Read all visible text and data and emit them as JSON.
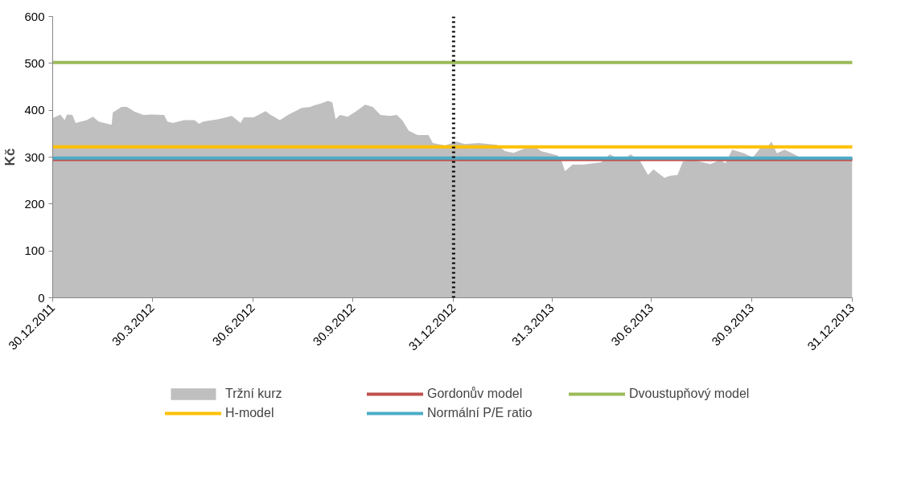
{
  "chart_data": {
    "type": "line",
    "ylabel": "Kč",
    "xlim": [
      "2011-12-30",
      "2013-12-31"
    ],
    "xticks": [
      {
        "value": "2011-12-30",
        "label": "30.12.2011"
      },
      {
        "value": "2012-03-30",
        "label": "30.3.2012"
      },
      {
        "value": "2012-06-30",
        "label": "30.6.2012"
      },
      {
        "value": "2012-09-30",
        "label": "30.9.2012"
      },
      {
        "value": "2012-12-31",
        "label": "31.12.2012"
      },
      {
        "value": "2013-03-31",
        "label": "31.3.2013"
      },
      {
        "value": "2013-06-30",
        "label": "30.6.2013"
      },
      {
        "value": "2013-09-30",
        "label": "30.9.2013"
      },
      {
        "value": "2013-12-31",
        "label": "31.12.2013"
      }
    ],
    "ylim": [
      0,
      600
    ],
    "yticks": [
      0,
      100,
      200,
      300,
      400,
      500,
      600
    ],
    "grid": false,
    "legend": "bottom",
    "marker": "none",
    "line_style": "solid",
    "ref_lines": [
      {
        "axis": "x",
        "value": "2012-12-31",
        "color": "#000000",
        "line_style": "dotted"
      }
    ],
    "series": [
      {
        "name": "Tržní kurz",
        "type": "area",
        "color": "#bfbfbf",
        "x": [
          "2011-12-30",
          "2012-01-06",
          "2012-01-10",
          "2012-01-12",
          "2012-01-17",
          "2012-01-20",
          "2012-01-30",
          "2012-02-05",
          "2012-02-10",
          "2012-02-22",
          "2012-02-23",
          "2012-03-02",
          "2012-03-07",
          "2012-03-14",
          "2012-03-22",
          "2012-03-29",
          "2012-04-10",
          "2012-04-13",
          "2012-04-18",
          "2012-04-28",
          "2012-05-08",
          "2012-05-12",
          "2012-05-16",
          "2012-05-30",
          "2012-06-11",
          "2012-06-19",
          "2012-06-22",
          "2012-07-01",
          "2012-07-12",
          "2012-07-16",
          "2012-07-25",
          "2012-08-02",
          "2012-08-14",
          "2012-08-22",
          "2012-08-25",
          "2012-08-31",
          "2012-09-07",
          "2012-09-11",
          "2012-09-14",
          "2012-09-18",
          "2012-09-25",
          "2012-10-03",
          "2012-10-11",
          "2012-10-18",
          "2012-10-25",
          "2012-11-03",
          "2012-11-09",
          "2012-11-14",
          "2012-11-20",
          "2012-11-28",
          "2012-12-08",
          "2012-12-12",
          "2012-12-23",
          "2013-01-03",
          "2013-01-10",
          "2013-01-23",
          "2013-02-09",
          "2013-02-16",
          "2013-02-24",
          "2013-03-03",
          "2013-03-14",
          "2013-03-21",
          "2013-04-05",
          "2013-04-09",
          "2013-04-12",
          "2013-04-19",
          "2013-04-29",
          "2013-05-15",
          "2013-05-23",
          "2013-06-03",
          "2013-06-11",
          "2013-06-20",
          "2013-06-27",
          "2013-07-02",
          "2013-07-12",
          "2013-07-17",
          "2013-07-24",
          "2013-07-29",
          "2013-08-08",
          "2013-08-23",
          "2013-09-01",
          "2013-09-06",
          "2013-09-12",
          "2013-09-23",
          "2013-10-01",
          "2013-10-08",
          "2013-10-14",
          "2013-10-18",
          "2013-10-23",
          "2013-10-30",
          "2013-11-06",
          "2013-11-16",
          "2013-12-23",
          "2013-12-31"
        ],
        "values": [
          383,
          391,
          379,
          391,
          390,
          373,
          379,
          386,
          376,
          369,
          395,
          407,
          407,
          397,
          390,
          391,
          390,
          376,
          373,
          379,
          379,
          371,
          376,
          381,
          388,
          373,
          385,
          385,
          398,
          391,
          379,
          391,
          405,
          407,
          410,
          414,
          420,
          417,
          381,
          390,
          386,
          398,
          412,
          407,
          390,
          388,
          390,
          379,
          356,
          347,
          347,
          330,
          325,
          333,
          328,
          330,
          326,
          313,
          309,
          316,
          325,
          313,
          304,
          291,
          270,
          284,
          284,
          289,
          306,
          292,
          306,
          291,
          262,
          274,
          256,
          260,
          262,
          291,
          294,
          285,
          294,
          287,
          316,
          308,
          299,
          320,
          321,
          333,
          308,
          316,
          308,
          296,
          296,
          296
        ]
      },
      {
        "name": "Gordonův model",
        "color": "#c0504d",
        "x": [
          "2011-12-30",
          "2013-12-31"
        ],
        "values": [
          295,
          295
        ]
      },
      {
        "name": "Dvoustupňový model",
        "color": "#9bbb59",
        "x": [
          "2011-12-30",
          "2013-12-31"
        ],
        "values": [
          502,
          502
        ]
      },
      {
        "name": "H-model",
        "color": "#ffc000",
        "x": [
          "2011-12-30",
          "2013-12-31"
        ],
        "values": [
          322,
          322
        ]
      },
      {
        "name": "Normální P/E ratio",
        "color": "#4bacc6",
        "x": [
          "2011-12-30",
          "2013-12-31"
        ],
        "values": [
          298,
          298
        ]
      }
    ]
  }
}
